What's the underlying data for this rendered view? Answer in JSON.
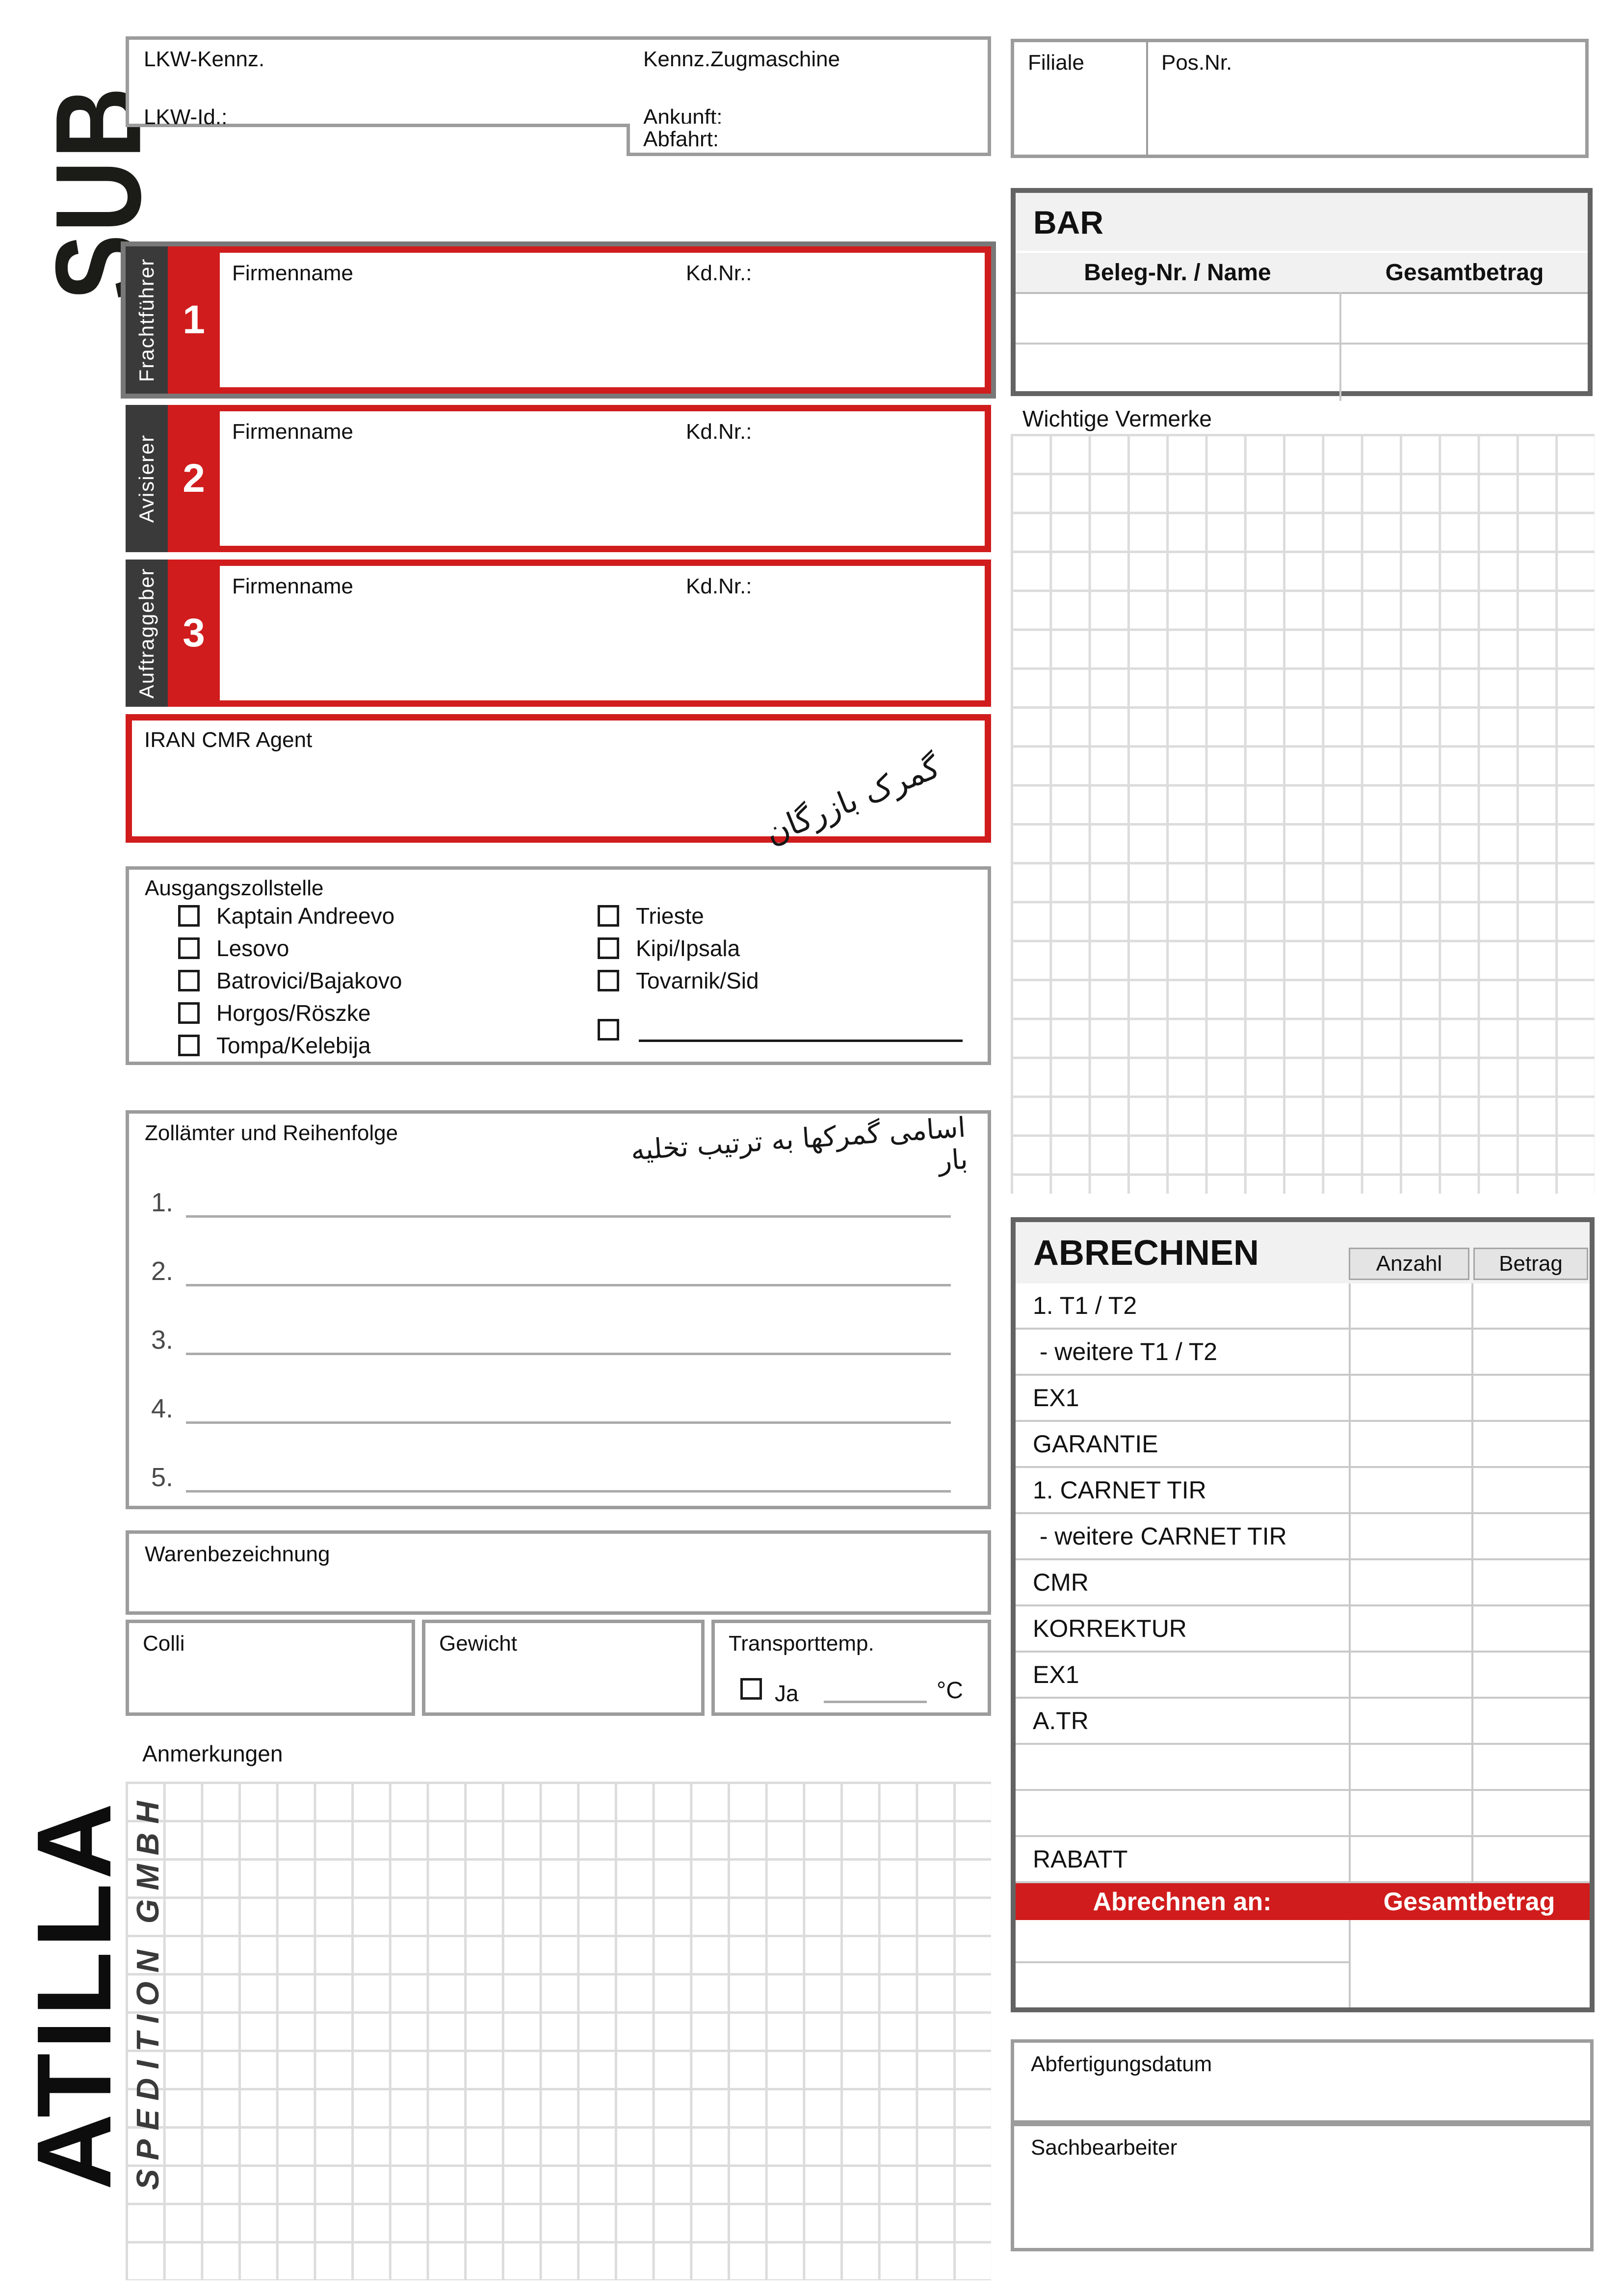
{
  "colors": {
    "red": "#d01c1c",
    "dark_strip": "#3a3a3a",
    "border_gray": "#9c9c9c",
    "border_dark_gray": "#636363",
    "header_bg": "#f1f1f1",
    "cell_header_bg": "#e4e4e4",
    "row_line": "#c9c9c9",
    "grid_line": "#dcdcdc"
  },
  "logos": {
    "sub": "SUB",
    "brand": "ATILLA",
    "brand_suffix": "SPEDITION GMBH"
  },
  "truck": {
    "lkw_kennz": "LKW-Kennz.",
    "kennz_zugmaschine": "Kennz.Zugmaschine",
    "lkw_id": "LKW-Id.:",
    "ankunft": "Ankunft:",
    "abfahrt": "Abfahrt:"
  },
  "filiale": {
    "filiale": "Filiale",
    "pos_nr": "Pos.Nr."
  },
  "bar": {
    "title": "BAR",
    "col_beleg": "Beleg-Nr. / Name",
    "col_gesamt": "Gesamtbetrag",
    "row_count": 2
  },
  "vermerke": {
    "title": "Wichtige Vermerke"
  },
  "parties": [
    {
      "number": "1",
      "role": "Frachtführer",
      "firmenname": "Firmenname",
      "kd_nr": "Kd.Nr.:"
    },
    {
      "number": "2",
      "role": "Avisierer",
      "firmenname": "Firmenname",
      "kd_nr": "Kd.Nr.:"
    },
    {
      "number": "3",
      "role": "Auftraggeber",
      "firmenname": "Firmenname",
      "kd_nr": "Kd.Nr.:"
    }
  ],
  "iran_agent": {
    "label": "IRAN CMR Agent",
    "handwriting": "گمرک بازرگان"
  },
  "ausgangszollstelle": {
    "title": "Ausgangszollstelle",
    "options_left": [
      "Kaptain Andreevo",
      "Lesovo",
      "Batrovici/Bajakovo",
      "Horgos/Röszke",
      "Tompa/Kelebija"
    ],
    "options_right": [
      "Trieste",
      "Kipi/Ipsala",
      "Tovarnik/Sid"
    ],
    "other_option_blank": ""
  },
  "zollaemter": {
    "title": "Zollämter und Reihenfolge",
    "handwriting": "اسامی گمرکها به ترتیب تخلیه بار",
    "line_numbers": [
      "1.",
      "2.",
      "3.",
      "4.",
      "5."
    ]
  },
  "waren": {
    "title": "Warenbezeichnung"
  },
  "mengen": {
    "colli": "Colli",
    "gewicht": "Gewicht",
    "transporttemp": "Transporttemp.",
    "ja_label": "Ja",
    "unit": "°C"
  },
  "anmerkungen": {
    "title": "Anmerkungen"
  },
  "abrechnen": {
    "title": "ABRECHNEN",
    "col_anzahl": "Anzahl",
    "col_betrag": "Betrag",
    "rows": [
      "1. T1 / T2",
      " - weitere T1 / T2",
      "EX1",
      "GARANTIE",
      "1. CARNET TIR",
      " - weitere CARNET TIR",
      "CMR",
      "KORREKTUR",
      "EX1",
      "A.TR",
      "",
      "",
      "RABATT"
    ],
    "footer": {
      "abrechnen_an": "Abrechnen an:",
      "gesamtbetrag": "Gesamtbetrag"
    }
  },
  "abfertigung": {
    "label": "Abfertigungsdatum"
  },
  "sachbearbeiter": {
    "label": "Sachbearbeiter"
  }
}
